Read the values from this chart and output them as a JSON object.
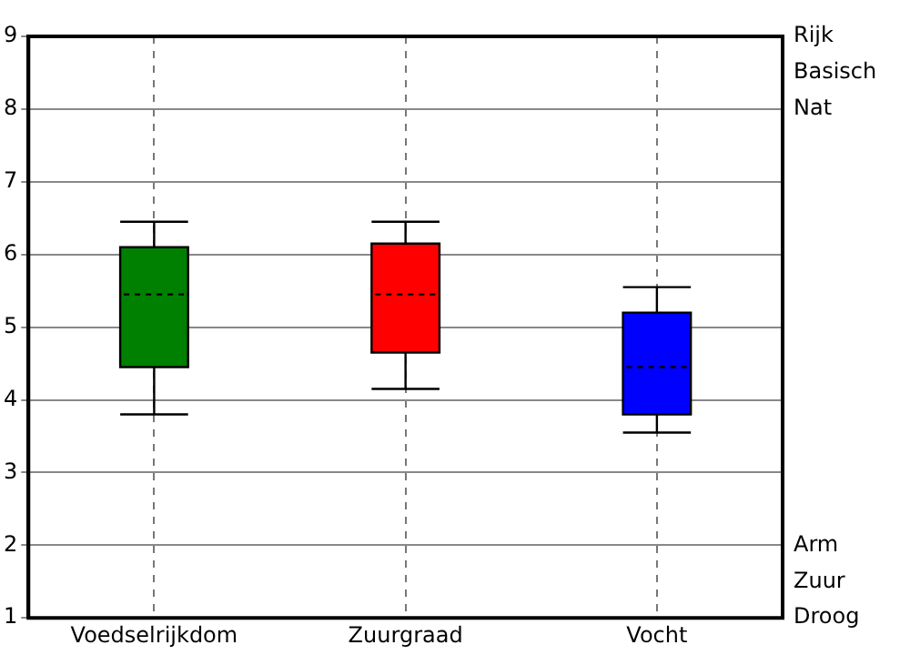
{
  "chart_data": {
    "type": "box",
    "categories": [
      "Voedselrijkdom",
      "Zuurgraad",
      "Vocht"
    ],
    "boxes": [
      {
        "low": 3.8,
        "q1": 4.45,
        "median": 5.45,
        "q3": 6.1,
        "high": 6.45
      },
      {
        "low": 4.15,
        "q1": 4.65,
        "median": 5.45,
        "q3": 6.15,
        "high": 6.45
      },
      {
        "low": 3.55,
        "q1": 3.8,
        "median": 4.45,
        "q3": 5.2,
        "high": 5.55
      }
    ],
    "colors": [
      "#008000",
      "#ff0000",
      "#0000ff"
    ],
    "ylim": [
      1,
      9
    ],
    "yticks": [
      1,
      2,
      3,
      4,
      5,
      6,
      7,
      8,
      9
    ],
    "annotations": [
      "Rijk\nBasisch\nNat",
      "Arm\nZuur\nDroog"
    ],
    "grid": true
  }
}
